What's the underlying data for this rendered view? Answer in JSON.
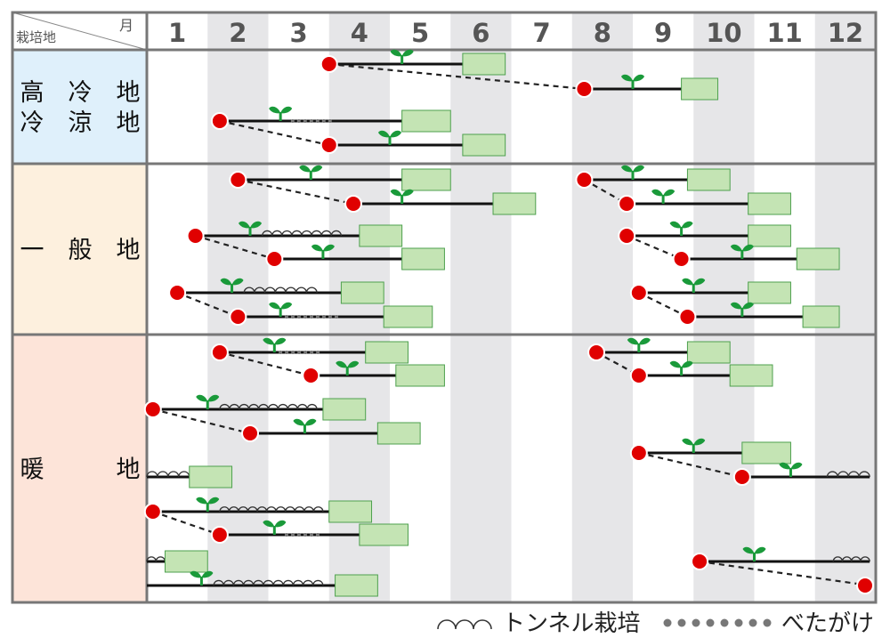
{
  "header": {
    "left_label": "栽培地",
    "month_label": "月"
  },
  "months": [
    "1",
    "2",
    "3",
    "4",
    "5",
    "6",
    "7",
    "8",
    "9",
    "10",
    "11",
    "12"
  ],
  "regions": [
    {
      "key": "cold",
      "label_lines": [
        "高　冷　地",
        "冷　涼　地"
      ],
      "bg": "#dff0fb"
    },
    {
      "key": "general",
      "label_lines": [
        "一　般　地"
      ],
      "bg": "#fdf0de"
    },
    {
      "key": "warm",
      "label_lines": [
        "暖　　　地"
      ],
      "bg": "#fde4d9"
    }
  ],
  "legend": {
    "tunnel": "トンネル栽培",
    "vet": "べたがけ"
  },
  "colors": {
    "sowing": "#e00000",
    "harvest_fill": "#c4e4b4",
    "harvest_border": "#4ea04e",
    "sprout": "#1a9a3a",
    "line": "#111111",
    "stripe": "#e6e6e8",
    "frame": "#777777"
  },
  "chart_data": {
    "type": "table",
    "title": "",
    "xlabel": "月",
    "ylabel": "栽培地",
    "x_unit": "month (1–12)",
    "symbols": {
      "sowing": "red circle",
      "planting": "green sprout",
      "harvest": "green box",
      "tunnel": "arcs",
      "vet": "dots"
    },
    "schedules": [
      {
        "region": "高冷地・冷涼地",
        "sow": 4.0,
        "plant": 5.2,
        "harvest": [
          6.2,
          6.9
        ],
        "link_to": "next"
      },
      {
        "region": "高冷地・冷涼地",
        "sow": 8.2,
        "plant": 9.0,
        "harvest": [
          9.8,
          10.4
        ]
      },
      {
        "region": "高冷地・冷涼地",
        "sow": 2.2,
        "plant": 3.2,
        "vet": [
          3.4,
          4.1
        ],
        "harvest": [
          5.2,
          6.0
        ],
        "link_to": "next"
      },
      {
        "region": "高冷地・冷涼地",
        "sow": 4.0,
        "plant": 5.0,
        "harvest": [
          6.2,
          6.9
        ]
      },
      {
        "region": "一般地",
        "sow": 2.5,
        "plant": 3.7,
        "harvest": [
          5.2,
          6.0
        ],
        "link_to": "next"
      },
      {
        "region": "一般地",
        "sow": 4.4,
        "plant": 5.2,
        "harvest": [
          6.7,
          7.4
        ]
      },
      {
        "region": "一般地",
        "sow": 8.2,
        "plant": 9.0,
        "harvest": [
          9.9,
          10.6
        ],
        "link_to": "next"
      },
      {
        "region": "一般地",
        "sow": 8.9,
        "plant": 9.5,
        "harvest": [
          10.9,
          11.6
        ]
      },
      {
        "region": "一般地",
        "sow": 1.8,
        "plant": 2.7,
        "tunnel": [
          2.9,
          4.2
        ],
        "harvest": [
          4.5,
          5.2
        ],
        "link_to": "next"
      },
      {
        "region": "一般地",
        "sow": 3.1,
        "plant": 3.9,
        "harvest": [
          5.2,
          5.9
        ]
      },
      {
        "region": "一般地",
        "sow": 8.9,
        "plant": 9.8,
        "harvest": [
          10.9,
          11.6
        ],
        "link_to": "next"
      },
      {
        "region": "一般地",
        "sow": 9.8,
        "plant": 10.8,
        "harvest": [
          11.7,
          12.4
        ]
      },
      {
        "region": "一般地",
        "sow": 1.5,
        "plant": 2.4,
        "tunnel": [
          2.6,
          3.8
        ],
        "harvest": [
          4.2,
          4.9
        ],
        "link_to": "next"
      },
      {
        "region": "一般地",
        "sow": 2.5,
        "plant": 3.2,
        "vet": [
          3.3,
          4.2
        ],
        "harvest": [
          4.9,
          5.7
        ]
      },
      {
        "region": "一般地",
        "sow": 9.1,
        "plant": 10.0,
        "harvest": [
          10.9,
          11.6
        ],
        "link_to": "next"
      },
      {
        "region": "一般地",
        "sow": 9.9,
        "plant": 10.8,
        "harvest": [
          11.8,
          12.4
        ]
      },
      {
        "region": "暖地",
        "sow": 2.2,
        "plant": 3.1,
        "vet": [
          3.2,
          3.9
        ],
        "harvest": [
          4.6,
          5.3
        ],
        "link_to": "next"
      },
      {
        "region": "暖地",
        "sow": 3.7,
        "plant": 4.3,
        "harvest": [
          5.1,
          5.9
        ]
      },
      {
        "region": "暖地",
        "sow": 8.4,
        "plant": 9.1,
        "harvest": [
          9.9,
          10.6
        ],
        "link_to": "next"
      },
      {
        "region": "暖地",
        "sow": 9.1,
        "plant": 9.8,
        "harvest": [
          10.6,
          11.3
        ]
      },
      {
        "region": "暖地",
        "sow": 1.1,
        "plant": 2.0,
        "tunnel": [
          2.2,
          3.8
        ],
        "harvest": [
          3.9,
          4.6
        ],
        "link_to": "next"
      },
      {
        "region": "暖地",
        "sow": 2.7,
        "plant": 3.6,
        "harvest": [
          4.8,
          5.5
        ]
      },
      {
        "region": "暖地",
        "tunnel": [
          1.0,
          1.7
        ],
        "harvest": [
          1.7,
          2.4
        ]
      },
      {
        "region": "暖地",
        "sow": 9.1,
        "plant": 10.0,
        "harvest": [
          10.8,
          11.6
        ],
        "link_to": "next"
      },
      {
        "region": "暖地",
        "sow": 10.8,
        "plant": 11.6,
        "line_end": 12.9,
        "tunnel_end": [
          12.2,
          12.9
        ]
      },
      {
        "region": "暖地",
        "sow": 1.1,
        "plant": 2.0,
        "tunnel": [
          2.2,
          3.9
        ],
        "harvest": [
          4.0,
          4.7
        ],
        "link_to": "next"
      },
      {
        "region": "暖地",
        "sow": 2.2,
        "plant": 3.1,
        "vet": [
          3.3,
          3.9
        ],
        "harvest": [
          4.5,
          5.3
        ]
      },
      {
        "region": "暖地",
        "tunnel": [
          1.0,
          1.3
        ],
        "harvest": [
          1.3,
          2.0
        ]
      },
      {
        "region": "暖地",
        "sow": 10.1,
        "plant": 11.0,
        "line_end": 12.9,
        "tunnel_end": [
          12.3,
          12.9
        ],
        "link_to": "12.9"
      },
      {
        "region": "暖地",
        "plant": 1.9,
        "tunnel": [
          2.1,
          3.9
        ],
        "harvest": [
          4.1,
          4.8
        ],
        "line_start": 1.0
      }
    ]
  }
}
